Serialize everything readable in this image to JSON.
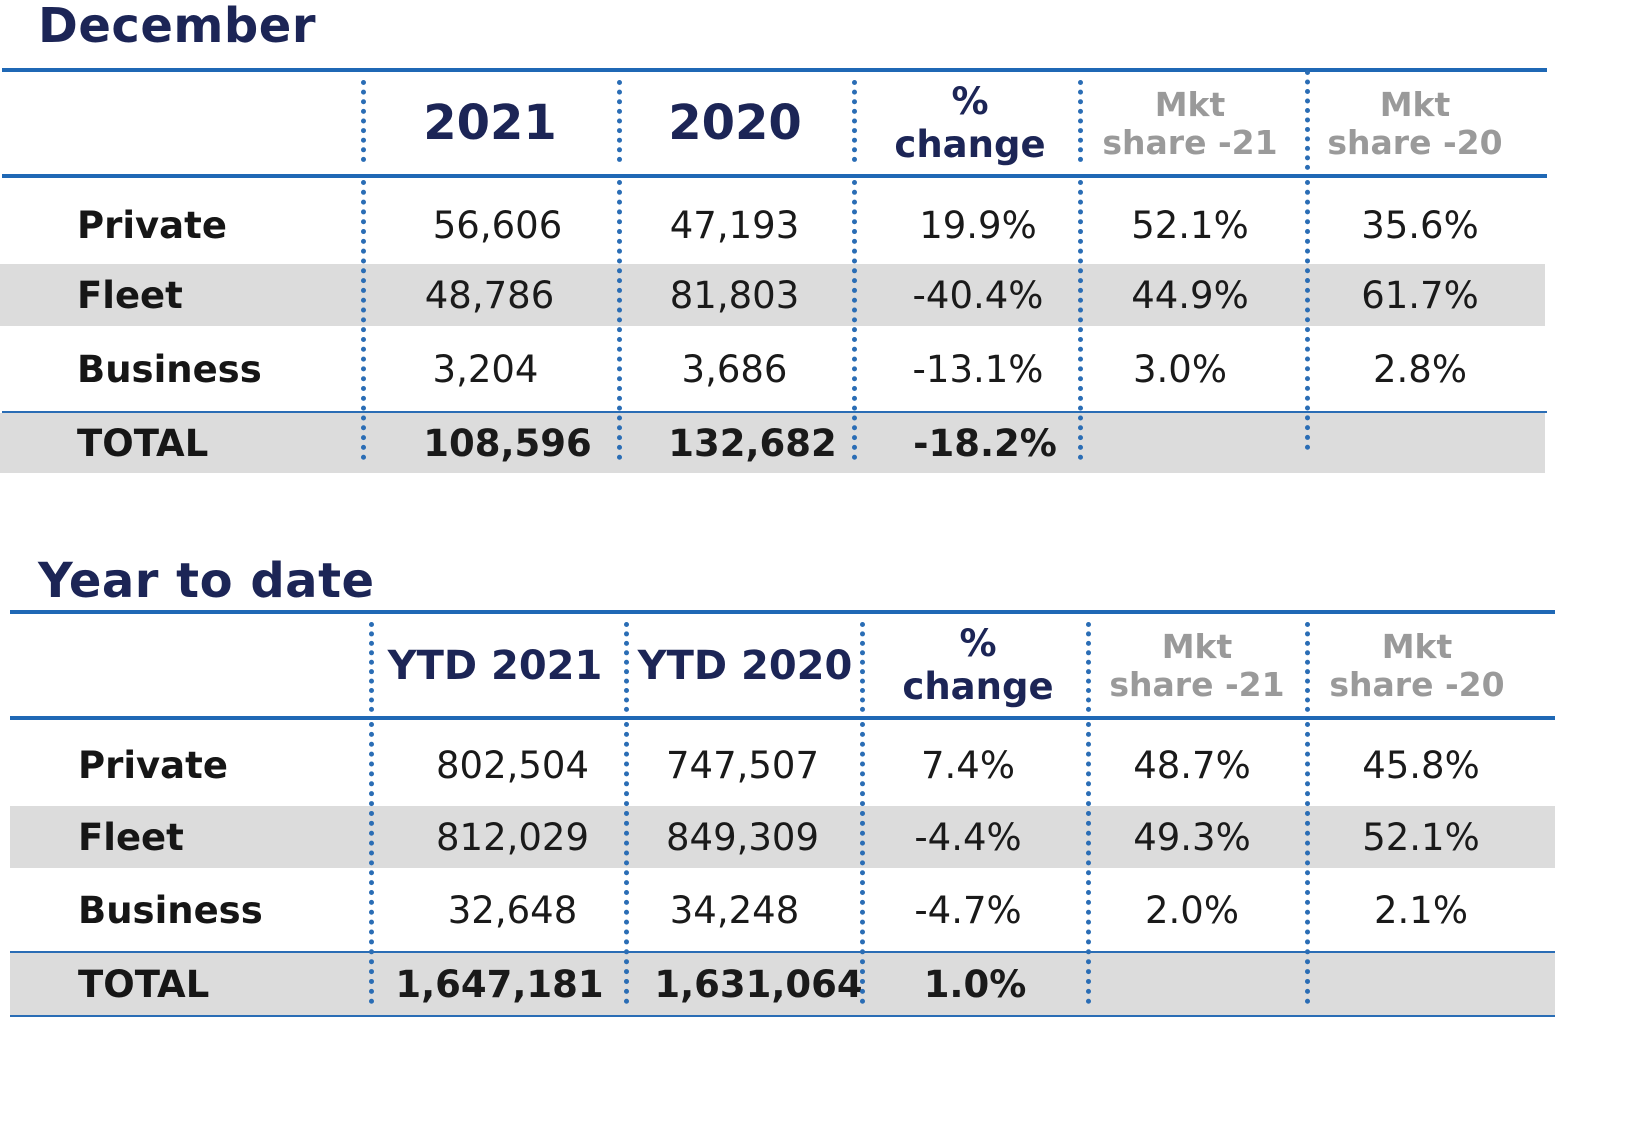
{
  "december": {
    "title": "December",
    "headers": {
      "col1": "2021",
      "col2": "2020",
      "col3_line1": "%",
      "col3_line2": "change",
      "col4_line1": "Mkt",
      "col4_line2": "share -21",
      "col5_line1": "Mkt",
      "col5_line2": "share -20"
    },
    "rows": [
      {
        "label": "Private",
        "v2021": "56,606",
        "v2020": "47,193",
        "change": "19.9%",
        "share21": "52.1%",
        "share20": "35.6%"
      },
      {
        "label": "Fleet",
        "v2021": "48,786",
        "v2020": "81,803",
        "change": "-40.4%",
        "share21": "44.9%",
        "share20": "61.7%"
      },
      {
        "label": "Business",
        "v2021": "3,204",
        "v2020": "3,686",
        "change": "-13.1%",
        "share21": "3.0%",
        "share20": "2.8%"
      }
    ],
    "total": {
      "label": "TOTAL",
      "v2021": "108,596",
      "v2020": "132,682",
      "change": "-18.2%"
    }
  },
  "ytd": {
    "title": "Year to date",
    "headers": {
      "col1": "YTD 2021",
      "col2": "YTD 2020",
      "col3_line1": "%",
      "col3_line2": "change",
      "col4_line1": "Mkt",
      "col4_line2": "share -21",
      "col5_line1": "Mkt",
      "col5_line2": "share -20"
    },
    "rows": [
      {
        "label": "Private",
        "v2021": "802,504",
        "v2020": "747,507",
        "change": "7.4%",
        "share21": "48.7%",
        "share20": "45.8%"
      },
      {
        "label": "Fleet",
        "v2021": "812,029",
        "v2020": "849,309",
        "change": "-4.4%",
        "share21": "49.3%",
        "share20": "52.1%"
      },
      {
        "label": "Business",
        "v2021": "32,648",
        "v2020": "34,248",
        "change": "-4.7%",
        "share21": "2.0%",
        "share20": "2.1%"
      }
    ],
    "total": {
      "label": "TOTAL",
      "v2021": "1,647,181",
      "v2020": "1,631,064",
      "change": "1.0%"
    }
  }
}
